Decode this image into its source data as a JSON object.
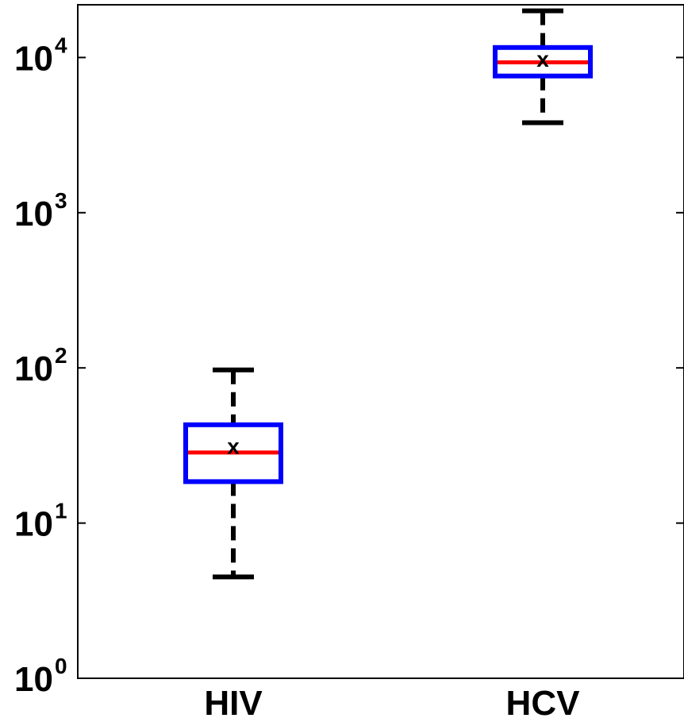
{
  "chart_data": {
    "type": "box",
    "y_scale": "log",
    "ylim": [
      1,
      20000
    ],
    "y_ticks": [
      {
        "value": 1,
        "base": "10",
        "exp": "0"
      },
      {
        "value": 10,
        "base": "10",
        "exp": "1"
      },
      {
        "value": 100,
        "base": "10",
        "exp": "2"
      },
      {
        "value": 1000,
        "base": "10",
        "exp": "3"
      },
      {
        "value": 10000,
        "base": "10",
        "exp": "4"
      }
    ],
    "categories": [
      "HIV",
      "HCV"
    ],
    "boxes": [
      {
        "category": "HIV",
        "whisker_low": 4.5,
        "q1": 18.5,
        "median": 28.5,
        "q3": 43,
        "whisker_high": 97,
        "mean": 31
      },
      {
        "category": "HCV",
        "whisker_low": 3800,
        "q1": 7600,
        "median": 9300,
        "q3": 11600,
        "whisker_high": 20000,
        "mean": 9700
      }
    ],
    "mean_marker": "x",
    "colors": {
      "box": "#0000ff",
      "median": "#ff0000",
      "whisker": "#000000",
      "axis": "#000000"
    },
    "grid": false,
    "legend": "none"
  }
}
